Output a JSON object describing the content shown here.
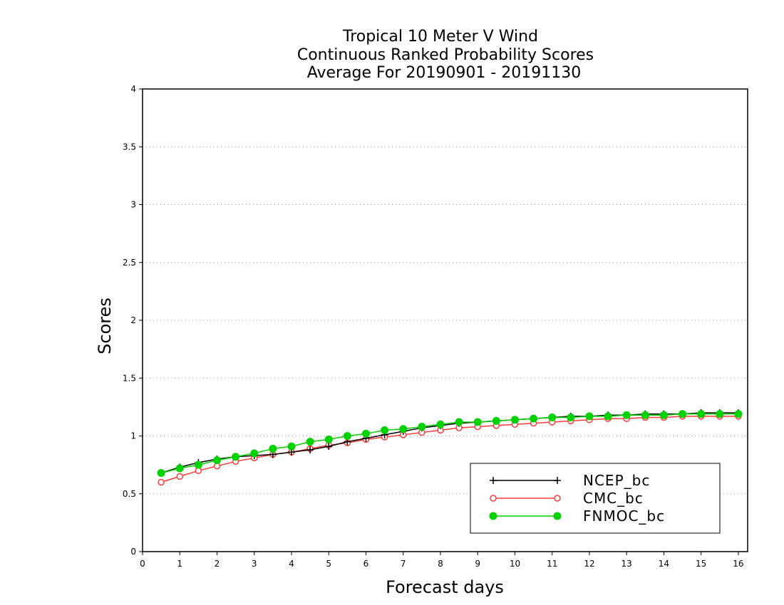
{
  "chart_data": {
    "type": "line",
    "title": [
      "Tropical 10 Meter V Wind",
      "Continuous Ranked Probability Scores",
      "Average For 20190901 - 20191130"
    ],
    "xlabel": "Forecast days",
    "ylabel": "Scores",
    "xlim": [
      0,
      16.25
    ],
    "ylim": [
      0,
      4
    ],
    "x_ticks": [
      0,
      1,
      2,
      3,
      4,
      5,
      6,
      7,
      8,
      9,
      10,
      11,
      12,
      13,
      14,
      15,
      16
    ],
    "y_ticks": [
      0,
      0.5,
      1,
      1.5,
      2,
      2.5,
      3,
      3.5,
      4
    ],
    "y_tick_labels": [
      "0",
      "0.5",
      "1",
      "1.5",
      "2",
      "2.5",
      "3",
      "3.5",
      "4"
    ],
    "grid": "horizontal dotted",
    "legend_position": "bottom-right",
    "x": [
      0.5,
      1,
      1.5,
      2,
      2.5,
      3,
      3.5,
      4,
      4.5,
      5,
      5.5,
      6,
      6.5,
      7,
      7.5,
      8,
      8.5,
      9,
      9.5,
      10,
      10.5,
      11,
      11.5,
      12,
      12.5,
      13,
      13.5,
      14,
      14.5,
      15,
      15.5,
      16
    ],
    "series": [
      {
        "name": "NCEP_bc",
        "color": "#000000",
        "marker": "plus",
        "values": [
          0.68,
          0.73,
          0.77,
          0.8,
          0.82,
          0.83,
          0.84,
          0.86,
          0.88,
          0.91,
          0.95,
          0.98,
          1.01,
          1.04,
          1.07,
          1.09,
          1.11,
          1.12,
          1.13,
          1.14,
          1.15,
          1.16,
          1.17,
          1.17,
          1.18,
          1.18,
          1.19,
          1.19,
          1.19,
          1.2,
          1.2,
          1.2
        ]
      },
      {
        "name": "CMC_bc",
        "color": "#ff3b3b",
        "marker": "open-circle",
        "values": [
          0.6,
          0.65,
          0.7,
          0.74,
          0.78,
          0.81,
          0.84,
          0.86,
          0.89,
          0.92,
          0.94,
          0.97,
          0.99,
          1.01,
          1.03,
          1.05,
          1.07,
          1.08,
          1.09,
          1.1,
          1.11,
          1.12,
          1.13,
          1.14,
          1.15,
          1.15,
          1.16,
          1.16,
          1.17,
          1.17,
          1.17,
          1.17
        ]
      },
      {
        "name": "FNMOC_bc",
        "color": "#00d200",
        "marker": "filled-circle",
        "values": [
          0.68,
          0.72,
          0.75,
          0.79,
          0.82,
          0.85,
          0.89,
          0.91,
          0.95,
          0.97,
          1.0,
          1.02,
          1.05,
          1.06,
          1.08,
          1.1,
          1.12,
          1.12,
          1.13,
          1.14,
          1.15,
          1.16,
          1.16,
          1.17,
          1.17,
          1.18,
          1.18,
          1.18,
          1.19,
          1.19,
          1.19,
          1.19
        ]
      }
    ]
  }
}
